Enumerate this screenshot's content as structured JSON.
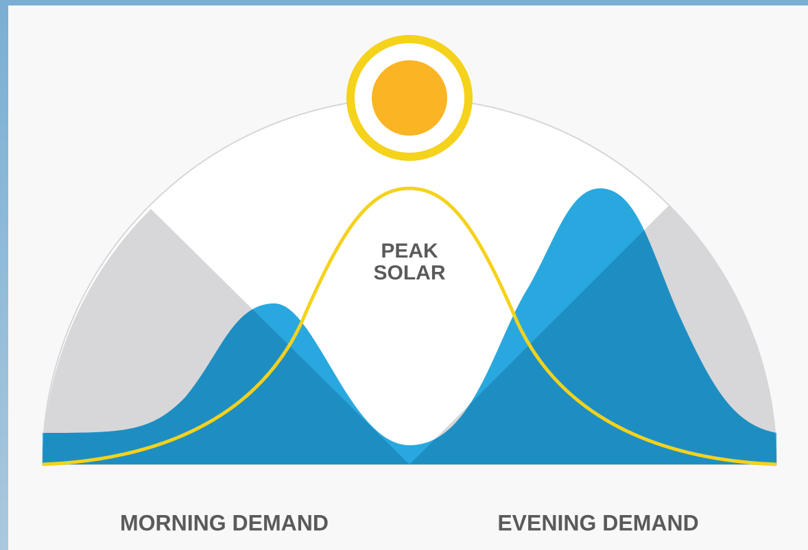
{
  "peak_solar": [
    "PEAK",
    "SOLAR"
  ],
  "morning_label": "MORNING DEMAND",
  "evening_label": "EVENING DEMAND"
}
